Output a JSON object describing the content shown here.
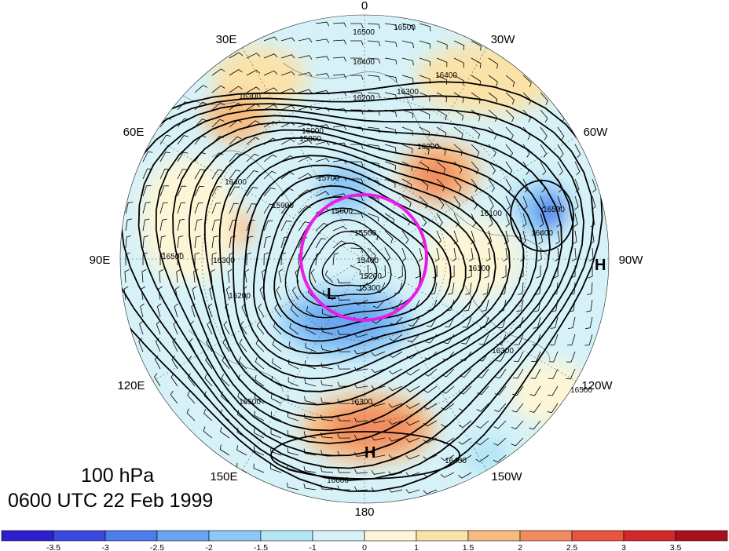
{
  "titles": {
    "level": "100 hPa",
    "time": "0600 UTC 22 Feb 1999"
  },
  "longitude_labels": [
    "0",
    "30W",
    "60W",
    "90W",
    "120W",
    "150W",
    "180",
    "150E",
    "120E",
    "90E",
    "60E",
    "30E"
  ],
  "contour_labels": [
    "16500",
    "16500",
    "16400",
    "16400",
    "16300",
    "16300",
    "16200",
    "16200",
    "16100",
    "16000",
    "15900",
    "15800",
    "15700",
    "15600",
    "15500",
    "15400",
    "15300",
    "15200",
    "16400",
    "16400",
    "16300",
    "16300",
    "16500",
    "16500",
    "16600",
    "16500",
    "16500",
    "16400",
    "16300",
    "16200",
    "16100"
  ],
  "pressure_centers": [
    {
      "type": "low",
      "label": "L"
    },
    {
      "type": "high",
      "label": "H"
    },
    {
      "type": "high",
      "label": "H"
    }
  ],
  "highlight": {
    "shape": "circle",
    "color": "#e81de6",
    "note": ""
  },
  "colorbar": {
    "tick_labels": [
      "-3.5",
      "-3",
      "-2.5",
      "-2",
      "-1.5",
      "-1",
      "0",
      "1",
      "1.5",
      "2",
      "2.5",
      "3",
      "3.5"
    ],
    "colors": [
      "#2b1fcf",
      "#3a47e0",
      "#4d7cec",
      "#68a6f2",
      "#8cc8f6",
      "#b4e6f6",
      "#d6f2f8",
      "#fdf6d6",
      "#fbe2a8",
      "#f7bb80",
      "#f28c5e",
      "#e8543d",
      "#d2282a",
      "#a8101c"
    ]
  }
}
